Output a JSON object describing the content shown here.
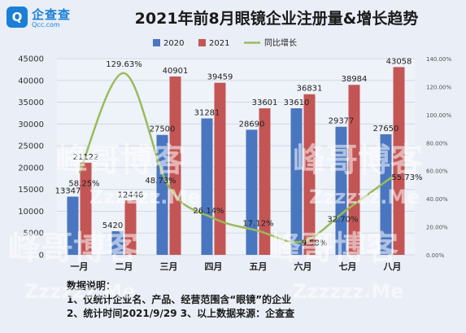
{
  "logo": {
    "name": "企查查",
    "url": "Qcc.com",
    "badge_letter": "Q"
  },
  "chart_data": {
    "type": "bar",
    "title": "2021年前8月眼镜企业注册量&增长趋势",
    "categories": [
      "一月",
      "二月",
      "三月",
      "四月",
      "五月",
      "六月",
      "七月",
      "八月"
    ],
    "series": [
      {
        "name": "2020",
        "kind": "bar",
        "axis": "left",
        "color": "#4a76c0",
        "values": [
          13347,
          5420,
          27500,
          31281,
          28690,
          33610,
          29377,
          27650
        ],
        "labels": [
          "13347",
          "5420",
          "27500",
          "31281",
          "28690",
          "33610",
          "29377",
          "27650"
        ]
      },
      {
        "name": "2021",
        "kind": "bar",
        "axis": "left",
        "color": "#c45555",
        "values": [
          21122,
          12446,
          40901,
          39459,
          33601,
          36831,
          38984,
          43058
        ],
        "labels": [
          "21122",
          "12446",
          "40901",
          "39459",
          "33601",
          "36831",
          "38984",
          "43058"
        ]
      },
      {
        "name": "同比增长",
        "kind": "line",
        "axis": "right",
        "color": "#9bbb59",
        "values": [
          58.25,
          129.63,
          48.73,
          26.14,
          17.12,
          9.58,
          32.7,
          55.73
        ],
        "labels": [
          "58.25%",
          "129.63%",
          "48.73%",
          "26.14%",
          "17.12%",
          "9.58%",
          "32.70%",
          "55.73%"
        ]
      }
    ],
    "y_left": {
      "min": 0,
      "max": 45000,
      "ticks": [
        0,
        5000,
        10000,
        15000,
        20000,
        25000,
        30000,
        35000,
        40000,
        45000
      ],
      "tick_labels": [
        "0",
        "5000",
        "10000",
        "15000",
        "20000",
        "25000",
        "30000",
        "35000",
        "40000",
        "45000"
      ]
    },
    "y_right": {
      "min": 0,
      "max": 140,
      "ticks": [
        0,
        20,
        40,
        60,
        80,
        100,
        120,
        140
      ],
      "tick_labels": [
        "0.00%",
        "20.00%",
        "40.00%",
        "60.00%",
        "80.00%",
        "100.00%",
        "120.00%",
        "140.00%"
      ]
    },
    "legend_position": "top"
  },
  "notes": [
    "数据说明：",
    "1、仅统计企业名、产品、经营范围含“眼镜”的企业",
    "2、统计时间2021/9/29     3、以上数据来源：企查查"
  ],
  "watermark": {
    "line1": "峰哥博客",
    "line2": "Zzzzzz.Me"
  }
}
